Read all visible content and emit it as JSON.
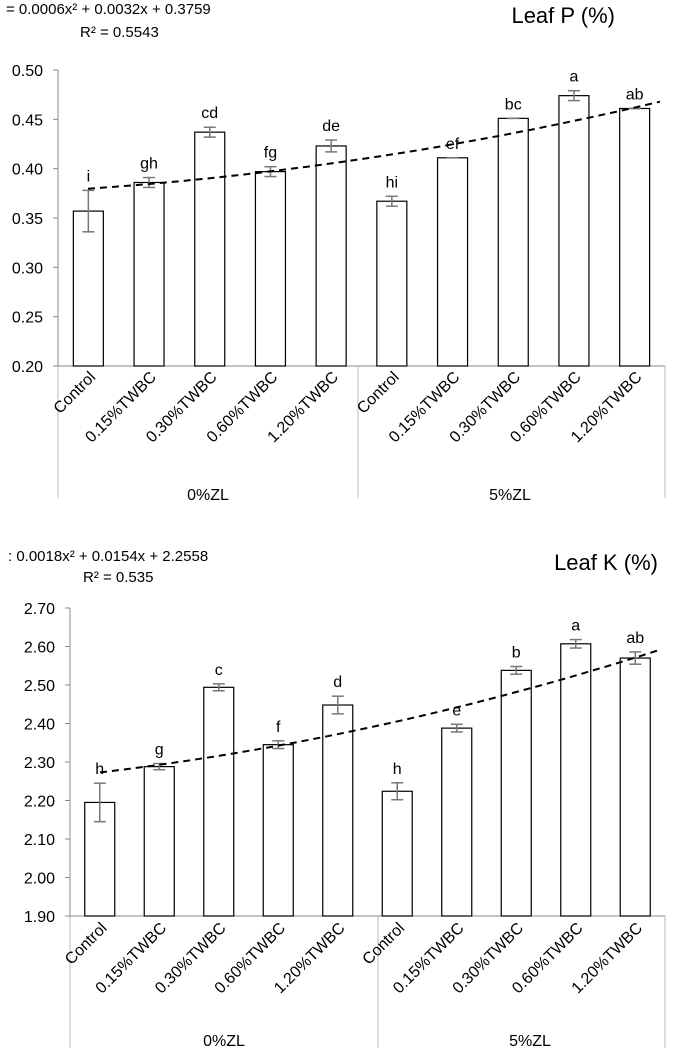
{
  "chart_data": [
    {
      "type": "bar",
      "title": "Leaf P (%)",
      "equation": "= 0.0006x² + 0.0032x + 0.3759",
      "r_squared": "R² = 0.5543",
      "categories": [
        "Control",
        "0.15%TWBC",
        "0.30%TWBC",
        "0.60%TWBC",
        "1.20%TWBC",
        "Control",
        "0.15%TWBC",
        "0.30%TWBC",
        "0.60%TWBC",
        "1.20%TWBC"
      ],
      "groups": [
        "0%ZL",
        "5%ZL"
      ],
      "values": [
        0.357,
        0.386,
        0.437,
        0.397,
        0.423,
        0.367,
        0.411,
        0.451,
        0.474,
        0.461
      ],
      "errors": [
        0.021,
        0.005,
        0.005,
        0.005,
        0.006,
        0.005,
        0.0,
        0.0,
        0.005,
        0.0
      ],
      "letters": [
        "i",
        "gh",
        "cd",
        "fg",
        "de",
        "hi",
        "ef",
        "bc",
        "a",
        "ab"
      ],
      "trend": {
        "a": 0.0006,
        "b": 0.0032,
        "c": 0.3759
      },
      "ylim": [
        0.2,
        0.5
      ],
      "yticks": [
        "0.20",
        "0.25",
        "0.30",
        "0.35",
        "0.40",
        "0.45",
        "0.50"
      ],
      "xlabel": "",
      "ylabel": ""
    },
    {
      "type": "bar",
      "title": "Leaf K (%)",
      "equation": ": 0.0018x² + 0.0154x + 2.2558",
      "r_squared": "R² = 0.535",
      "categories": [
        "Control",
        "0.15%TWBC",
        "0.30%TWBC",
        "0.60%TWBC",
        "1.20%TWBC",
        "Control",
        "0.15%TWBC",
        "0.30%TWBC",
        "0.60%TWBC",
        "1.20%TWBC"
      ],
      "groups": [
        "0%ZL",
        "5%ZL"
      ],
      "values": [
        2.195,
        2.288,
        2.494,
        2.345,
        2.448,
        2.224,
        2.388,
        2.538,
        2.607,
        2.57
      ],
      "errors": [
        0.05,
        0.008,
        0.009,
        0.01,
        0.023,
        0.022,
        0.01,
        0.01,
        0.011,
        0.016
      ],
      "letters": [
        "h",
        "g",
        "c",
        "f",
        "d",
        "h",
        "e",
        "b",
        "a",
        "ab"
      ],
      "trend": {
        "a": 0.0018,
        "b": 0.0154,
        "c": 2.2558
      },
      "ylim": [
        1.9,
        2.7
      ],
      "yticks": [
        "1.90",
        "2.00",
        "2.10",
        "2.20",
        "2.30",
        "2.40",
        "2.50",
        "2.60",
        "2.70"
      ],
      "xlabel": "",
      "ylabel": ""
    }
  ]
}
